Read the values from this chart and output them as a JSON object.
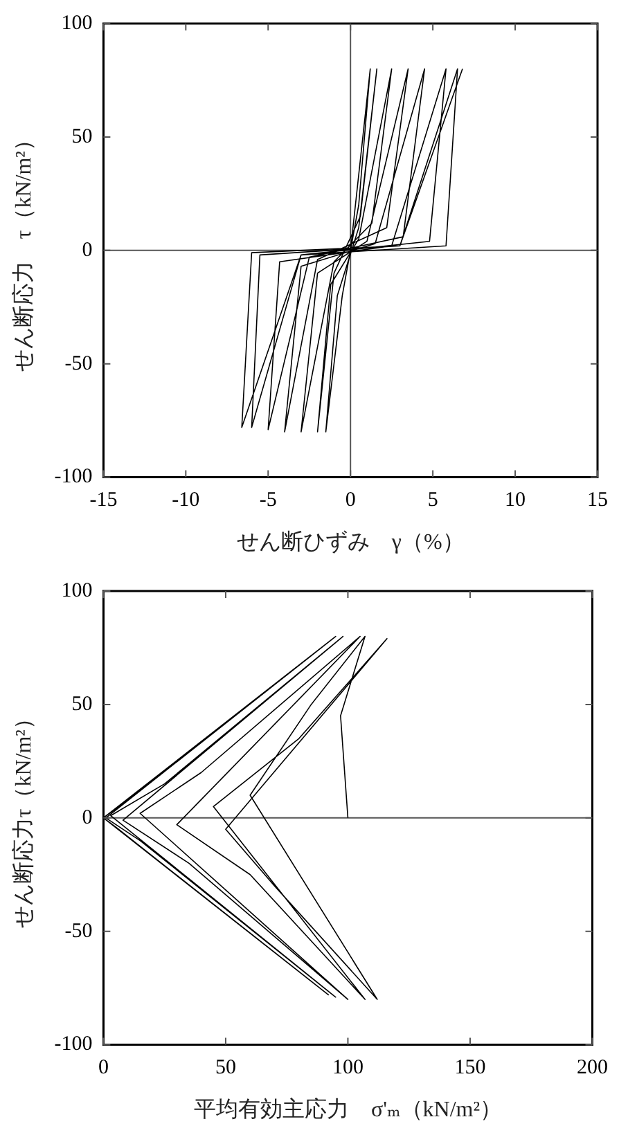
{
  "chart_data": [
    {
      "type": "line",
      "xlabel": "せん断ひずみ　γ（%）",
      "ylabel": "せん断応力　τ（kN/m²）",
      "xlim": [
        -15,
        15
      ],
      "xticks": [
        -15,
        -10,
        -5,
        0,
        5,
        10,
        15
      ],
      "ylim": [
        -100,
        100
      ],
      "yticks": [
        -100,
        -50,
        0,
        50,
        100
      ],
      "grid": false,
      "legend": false,
      "marker": "none",
      "line_style": "solid",
      "ref_lines": [
        {
          "axis": "x",
          "value": 0,
          "color": "#555555"
        },
        {
          "axis": "y",
          "value": 0,
          "color": "#555555"
        }
      ],
      "series": [
        {
          "color": "#000000",
          "x": [
            0,
            1.2,
            0.5,
            -0.5,
            -1.5,
            -0.8,
            0.5,
            1.6,
            0.6,
            -1,
            -2,
            -1.2,
            0.5,
            2.5,
            1.3,
            -1,
            -3,
            -2,
            1,
            3.5,
            2.2,
            -2,
            -4,
            -3,
            1.5,
            4.5,
            3.2,
            -2.5,
            -5,
            -4.3,
            2.5,
            5.8,
            4.8,
            -3,
            -6,
            -5.5,
            3,
            6.5,
            5.8,
            -3,
            -6.6,
            -6,
            3,
            6.8
          ],
          "values": [
            0,
            80,
            20,
            -20,
            -80,
            -20,
            10,
            80,
            15,
            -10,
            -80,
            -15,
            5,
            80,
            12,
            -5,
            -80,
            -10,
            4,
            80,
            10,
            -4,
            -80,
            -7,
            3,
            80,
            6,
            -3,
            -79,
            -5,
            2,
            80,
            4,
            -2,
            -78,
            -2,
            2,
            80,
            2,
            -2,
            -78,
            -1,
            2,
            80
          ]
        }
      ]
    },
    {
      "type": "line",
      "xlabel": "平均有効主応力　σ'ₘ（kN/m²）",
      "ylabel": "せん断応力τ（kN/m²）",
      "xlim": [
        0,
        200
      ],
      "xticks": [
        0,
        50,
        100,
        150,
        200
      ],
      "ylim": [
        -100,
        100
      ],
      "yticks": [
        -100,
        -50,
        0,
        50,
        100
      ],
      "grid": false,
      "legend": false,
      "marker": "none",
      "line_style": "solid",
      "ref_lines": [
        {
          "axis": "y",
          "value": 0,
          "color": "#555555"
        }
      ],
      "series": [
        {
          "color": "#000000",
          "x": [
            100,
            97,
            107,
            85,
            60,
            112,
            70,
            50,
            116,
            80,
            45,
            107,
            60,
            30,
            105,
            40,
            15,
            100,
            35,
            8,
            98,
            25,
            3,
            95,
            15,
            1,
            95,
            10,
            0,
            92,
            5,
            0,
            95
          ],
          "values": [
            0,
            45,
            80,
            50,
            10,
            -80,
            -30,
            -5,
            79,
            35,
            5,
            -80,
            -25,
            -3,
            80,
            20,
            2,
            -80,
            -20,
            -1,
            80,
            15,
            1,
            -79,
            -10,
            0,
            80,
            8,
            0,
            -78,
            -4,
            0,
            80
          ]
        }
      ]
    }
  ]
}
